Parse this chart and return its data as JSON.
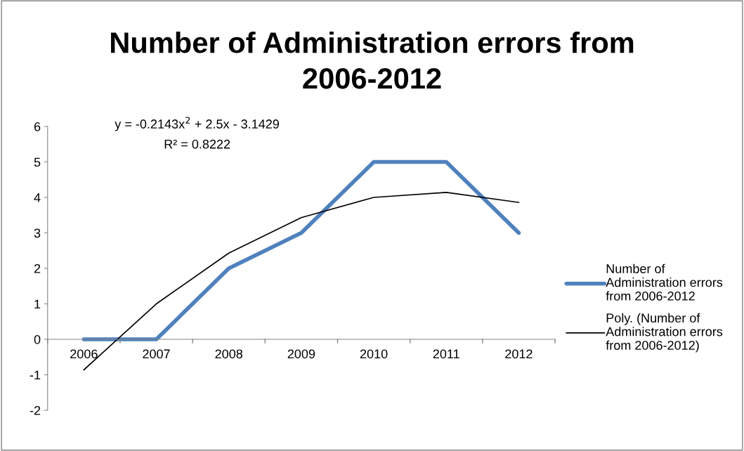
{
  "chart_data": {
    "type": "line",
    "title": "Number of Administration errors from 2006-2012",
    "categories": [
      "2006",
      "2007",
      "2008",
      "2009",
      "2010",
      "2011",
      "2012"
    ],
    "series": [
      {
        "name": "Number of Administration errors from 2006-2012",
        "color": "#4f81bd",
        "values": [
          0,
          0,
          2,
          3,
          5,
          5,
          3
        ]
      },
      {
        "name": "Poly. (Number of Administration errors from 2006-2012)",
        "color": "#000000",
        "values": [
          -0.86,
          1.0,
          2.43,
          3.43,
          4.0,
          4.14,
          3.86
        ]
      }
    ],
    "ylim": [
      -2,
      6
    ],
    "yticks": [
      -2,
      -1,
      0,
      1,
      2,
      3,
      4,
      5,
      6
    ],
    "annotations": [
      "y = -0.2143x$^{2}$ + 2.5x - 3.1429",
      "R² = 0.8222"
    ],
    "legend": "right",
    "grid": false,
    "marker": "none",
    "line_style": "solid"
  }
}
